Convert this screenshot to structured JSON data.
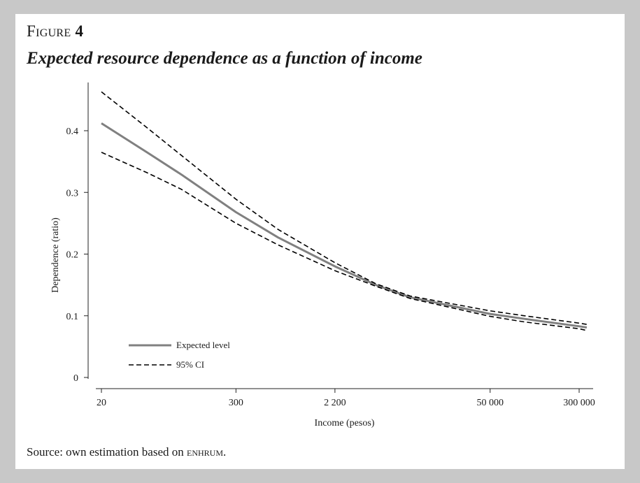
{
  "figure": {
    "label_prefix": "Figure",
    "label_number": "4",
    "title": "Expected resource dependence as a function of income",
    "source_prefix": "Source: own estimation based on ",
    "source_dataset": "enhrum",
    "source_suffix": "."
  },
  "chart_data": {
    "type": "line",
    "title": "Expected resource dependence as a function of income",
    "xlabel": "Income (pesos)",
    "ylabel": "Dependence (ratio)",
    "x_scale": "log",
    "xlim": [
      20,
      350000
    ],
    "ylim": [
      0,
      0.45
    ],
    "x_ticks": [
      20,
      300,
      2200,
      50000,
      300000
    ],
    "x_tick_labels": [
      "20",
      "300",
      "2 200",
      "50 000",
      "300 000"
    ],
    "y_ticks": [
      0,
      0.1,
      0.2,
      0.3,
      0.4
    ],
    "y_tick_labels": [
      "0",
      "0.1",
      "0.2",
      "0.3",
      "0.4"
    ],
    "grid": false,
    "legend_position": "bottom-left",
    "x": [
      20,
      50,
      100,
      300,
      700,
      2200,
      5000,
      10000,
      50000,
      100000,
      300000,
      350000
    ],
    "series": [
      {
        "name": "Expected level",
        "style": "solid",
        "color": "#808080",
        "values": [
          0.412,
          0.365,
          0.329,
          0.268,
          0.227,
          0.18,
          0.15,
          0.13,
          0.103,
          0.095,
          0.083,
          0.081
        ]
      },
      {
        "name": "95% CI",
        "style": "dashed",
        "color": "#000000",
        "band": "upper",
        "values": [
          0.463,
          0.405,
          0.36,
          0.289,
          0.24,
          0.186,
          0.152,
          0.132,
          0.108,
          0.1,
          0.088,
          0.086
        ]
      },
      {
        "name": "95% CI",
        "style": "dashed",
        "color": "#000000",
        "band": "lower",
        "values": [
          0.365,
          0.332,
          0.305,
          0.25,
          0.215,
          0.173,
          0.148,
          0.128,
          0.099,
          0.09,
          0.079,
          0.076
        ]
      }
    ]
  }
}
